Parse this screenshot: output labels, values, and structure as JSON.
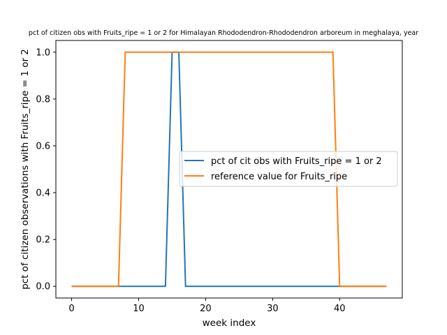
{
  "chart_data": {
    "type": "line",
    "title": "pct of citizen obs with Fruits_ripe = 1 or 2 for Himalayan Rhododendron-Rhododendron arboreum in meghalaya, year",
    "xlabel": "week index",
    "ylabel": "pct of citizen observations with Fruits_ripe = 1 or 2",
    "xlim": [
      -2.35,
      49.35
    ],
    "ylim": [
      -0.05,
      1.05
    ],
    "xticks": [
      0,
      10,
      20,
      30,
      40
    ],
    "xtick_labels": [
      "0",
      "10",
      "20",
      "30",
      "40"
    ],
    "yticks": [
      0.0,
      0.2,
      0.4,
      0.6,
      0.8,
      1.0
    ],
    "ytick_labels": [
      "0.0",
      "0.2",
      "0.4",
      "0.6",
      "0.8",
      "1.0"
    ],
    "grid": false,
    "legend_position": "center-right",
    "series": [
      {
        "name": "pct of cit obs with Fruits_ripe = 1 or 2",
        "color": "#1f77b4",
        "x": [
          0,
          1,
          2,
          3,
          4,
          5,
          6,
          7,
          8,
          9,
          10,
          11,
          12,
          13,
          14,
          15,
          16,
          17,
          18,
          19,
          20,
          21,
          22,
          23,
          24,
          25,
          26,
          27,
          28,
          29,
          30,
          31,
          32,
          33,
          34,
          35,
          36,
          37,
          38,
          39,
          40,
          41,
          42,
          43,
          44,
          45,
          46,
          47
        ],
        "y": [
          0,
          0,
          0,
          0,
          0,
          0,
          0,
          0,
          0,
          0,
          0,
          0,
          0,
          0,
          0,
          1,
          1,
          0,
          0,
          0,
          0,
          0,
          0,
          0,
          0,
          0,
          0,
          0,
          0,
          0,
          0,
          0,
          0,
          0,
          0,
          0,
          0,
          0,
          0,
          0,
          0,
          0,
          0,
          0,
          0,
          0,
          0,
          0
        ]
      },
      {
        "name": "reference value for Fruits_ripe",
        "color": "#ff7f0e",
        "x": [
          0,
          1,
          2,
          3,
          4,
          5,
          6,
          7,
          8,
          9,
          10,
          11,
          12,
          13,
          14,
          15,
          16,
          17,
          18,
          19,
          20,
          21,
          22,
          23,
          24,
          25,
          26,
          27,
          28,
          29,
          30,
          31,
          32,
          33,
          34,
          35,
          36,
          37,
          38,
          39,
          40,
          41,
          42,
          43,
          44,
          45,
          46,
          47
        ],
        "y": [
          0,
          0,
          0,
          0,
          0,
          0,
          0,
          0,
          1,
          1,
          1,
          1,
          1,
          1,
          1,
          1,
          1,
          1,
          1,
          1,
          1,
          1,
          1,
          1,
          1,
          1,
          1,
          1,
          1,
          1,
          1,
          1,
          1,
          1,
          1,
          1,
          1,
          1,
          1,
          1,
          0,
          0,
          0,
          0,
          0,
          0,
          0,
          0
        ]
      }
    ]
  }
}
